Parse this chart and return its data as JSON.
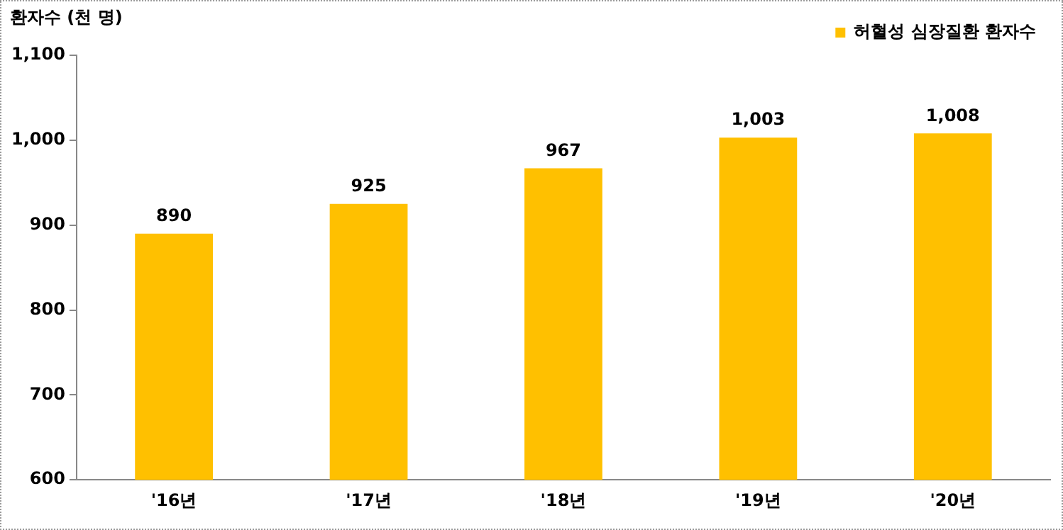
{
  "chart_data": {
    "type": "bar",
    "ylabel": "환자수 (천 명)",
    "categories": [
      "'16년",
      "'17년",
      "'18년",
      "'19년",
      "'20년"
    ],
    "series": [
      {
        "name": "허혈성 심장질환 환자수",
        "color": "#ffc000",
        "values": [
          890,
          925,
          967,
          1003,
          1008
        ],
        "value_labels": [
          "890",
          "925",
          "967",
          "1,003",
          "1,008"
        ]
      }
    ],
    "ylim": [
      600,
      1100
    ],
    "yticks": [
      600,
      700,
      800,
      900,
      {
        "value": 1000,
        "label": "1,000"
      },
      {
        "value": 1100,
        "label": "1,100"
      }
    ],
    "grid": false,
    "legend": "top right"
  }
}
